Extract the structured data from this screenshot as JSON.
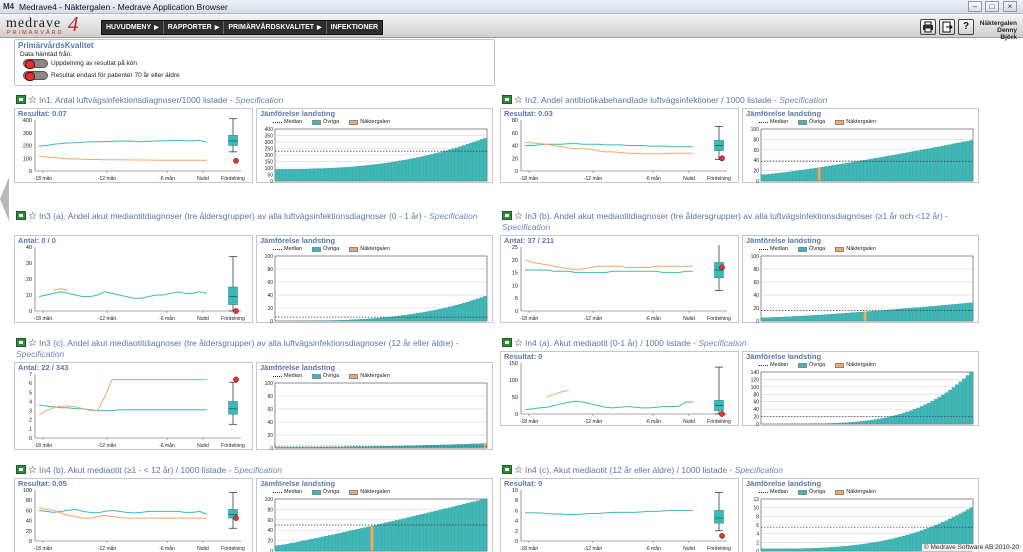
{
  "window": {
    "title": "Medrave4 - Näktergalen - Medrave Application Browser",
    "icon": "M4",
    "controls": [
      "–",
      "□",
      "×"
    ]
  },
  "logo": {
    "main": "medrave",
    "number": "4",
    "sub": "PRIMÄRVÅRD"
  },
  "menu": [
    {
      "label": "HUVUDMENY",
      "arrow": "▶"
    },
    {
      "label": "RAPPORTER",
      "arrow": "▶"
    },
    {
      "label": "PRIMÄRVÅRDSKVALITET",
      "arrow": "▶"
    },
    {
      "label": "INFEKTIONER",
      "arrow": ""
    }
  ],
  "toolbar": {
    "print_icon": "printer-icon",
    "exit_icon": "exit-icon",
    "help_label": "?"
  },
  "user": {
    "unit": "Näktergalen",
    "name": "Denny Björk"
  },
  "filter": {
    "title": "PrimärvårdsKvalitet",
    "subtitle": "Data hämtad från:",
    "options": [
      "Uppdelning av resultat på kön",
      "Resultat endast för patienter 70 år eller äldre"
    ]
  },
  "common": {
    "spec": "Specification",
    "comparison_title": "Jämförelse landsting",
    "legend": [
      "Median",
      "Övriga",
      "Näktergalen"
    ],
    "x_ticks": [
      "-18 mån",
      "-12 mån",
      "-6 mån",
      "Nutid"
    ],
    "box_label": "Fördelning"
  },
  "colors": {
    "teal": "#3cb9b9",
    "orange": "#f0a868",
    "median": "#333333",
    "marker": "#d9363e",
    "title_blue": "#5a76a8"
  },
  "copyright": "© Medrave Software AB 2010-20",
  "indicators": [
    {
      "title": "In1. Antal luftvägsinfektionsdiagnoser/1000 listade - ",
      "spec_line": 1,
      "result": "Resultat: 0.07",
      "trend": {
        "y_ticks": [
          "400",
          "300",
          "200",
          "100",
          "0"
        ],
        "ymax": 400,
        "teal": [
          195,
          200,
          210,
          215,
          220,
          222,
          225,
          228,
          230,
          230,
          232,
          235,
          235,
          233,
          230,
          232,
          235,
          236,
          238,
          240,
          238,
          236,
          240,
          225
        ],
        "orange": [
          115,
          110,
          105,
          100,
          95,
          95,
          92,
          90,
          90,
          88,
          88,
          88,
          87,
          86,
          86,
          86,
          85,
          85,
          84,
          84,
          84,
          84,
          84,
          84
        ],
        "box": {
          "min": 150,
          "q1": 200,
          "med": 235,
          "q3": 280,
          "max": 410,
          "marker": 80
        }
      },
      "comparison": {
        "y_ticks": [
          "400",
          "350",
          "300",
          "250",
          "200",
          "150",
          "100",
          "50",
          "0"
        ],
        "ymax": 400,
        "median": 230,
        "curve": [
          90,
          330,
          2.5
        ],
        "highlight": -1
      }
    },
    {
      "title": "In2. Andel antibiotikabehandlade luftvägsinfektioner / 1000 listade - ",
      "spec_line": 1,
      "result": "Resultat: 0.03",
      "trend": {
        "y_ticks": [
          "80",
          "60",
          "40",
          "20",
          "0"
        ],
        "ymax": 80,
        "teal": [
          40,
          40,
          41,
          42,
          42,
          42,
          43,
          43,
          42,
          42,
          42,
          41,
          41,
          41,
          40,
          40,
          40,
          39,
          39,
          39,
          38,
          38,
          38,
          38
        ],
        "orange": [
          45,
          44,
          43,
          42,
          40,
          38,
          36,
          35,
          35,
          34,
          32,
          30,
          30,
          29,
          28,
          28,
          27,
          27,
          27,
          27,
          28,
          28,
          28,
          28
        ],
        "box": {
          "min": 18,
          "q1": 32,
          "med": 40,
          "q3": 48,
          "max": 70,
          "marker": 20
        }
      },
      "comparison": {
        "y_ticks": [
          "100",
          "80",
          "60",
          "40",
          "20",
          "0"
        ],
        "ymax": 100,
        "median": 38,
        "curve": [
          12,
          78,
          1.2
        ],
        "highlight": 16
      }
    },
    {
      "title": "In3 (a). Andel akut mediaotitdiagnoser (tre åldersgrupper) av alla luftvägsinfektionsdiagnoser (0 - 1 år) - ",
      "spec_line": 2,
      "result": "Antal: 0 / 0",
      "trend": {
        "y_ticks": [
          "40",
          "30",
          "20",
          "10",
          "0"
        ],
        "ymax": 40,
        "teal": [
          9,
          10,
          11,
          12,
          11,
          10,
          9,
          9,
          10,
          12,
          11,
          10,
          9,
          8,
          8,
          9,
          10,
          10,
          11,
          12,
          11,
          11,
          12,
          11
        ],
        "orange": [
          null,
          null,
          13,
          14,
          13,
          null,
          null,
          null,
          null,
          null,
          null,
          null,
          null,
          null,
          null,
          null,
          null,
          null,
          null,
          null,
          null,
          null,
          null,
          null
        ],
        "box": {
          "min": 0,
          "q1": 4,
          "med": 9,
          "q3": 15,
          "max": 34,
          "marker": 0
        }
      },
      "comparison": {
        "y_ticks": [
          "100",
          "80",
          "60",
          "40",
          "20",
          "0"
        ],
        "ymax": 100,
        "median": 6,
        "curve": [
          0,
          38,
          3
        ],
        "highlight": -1
      }
    },
    {
      "title": "In3 (b). Andel akut mediaotitdiagnoser (tre åldersgrupper) av alla luftvägsinfektionsdiagnoser (≥1 år och <12 år) - ",
      "spec_line": 2,
      "result": "Antal: 37 / 211",
      "trend": {
        "y_ticks": [
          "25",
          "20",
          "15",
          "10",
          "5",
          "0"
        ],
        "ymax": 25,
        "teal": [
          16,
          16,
          16,
          16,
          15.5,
          15.5,
          15.5,
          15,
          15,
          15,
          15,
          15,
          15.5,
          15.5,
          15.5,
          15.5,
          15.5,
          15.5,
          15.5,
          15,
          15,
          15,
          15.5,
          15.5
        ],
        "orange": [
          20,
          19,
          18.5,
          18,
          17.5,
          17,
          16.5,
          16,
          16.5,
          17,
          17.5,
          17.5,
          17.5,
          17.5,
          17,
          17,
          17,
          17,
          17.5,
          17.5,
          17.5,
          17.5,
          17.5,
          17.5
        ],
        "box": {
          "min": 8,
          "q1": 13,
          "med": 16,
          "q3": 19,
          "max": 27,
          "marker": 17
        }
      },
      "comparison": {
        "y_ticks": [
          "100",
          "80",
          "60",
          "40",
          "20",
          "0"
        ],
        "ymax": 100,
        "median": 16,
        "curve": [
          5,
          28,
          1.3
        ],
        "highlight": 29
      }
    },
    {
      "title": "In3 (c). Andel akut mediaotitdiagnoser (tre åldersgrupper) av alla luftvägsinfektionsdiagnoser (12 år eller äldre) - ",
      "spec_line": 2,
      "result": "Antal: 22 / 343",
      "trend": {
        "y_ticks": [
          "7",
          "6",
          "5",
          "4",
          "3",
          "2",
          "1",
          "0"
        ],
        "ymax": 7,
        "teal": [
          3.6,
          3.5,
          3.4,
          3.3,
          3.3,
          3.2,
          3.2,
          3.1,
          3.0,
          3.0,
          3.0,
          3.1,
          3.1,
          3.1,
          3.1,
          3.1,
          3.1,
          3.1,
          3.1,
          3.1,
          3.1,
          3.1,
          3.1,
          3.1
        ],
        "orange": [
          2.5,
          3.0,
          3.3,
          3.5,
          3.5,
          3.4,
          3.2,
          3.0,
          3.0,
          4.5,
          6.4,
          6.4,
          6.4,
          6.4,
          6.4,
          6.4,
          6.4,
          6.4,
          6.4,
          6.4,
          6.4,
          6.4,
          6.4,
          6.4
        ],
        "box": {
          "min": 1.5,
          "q1": 2.6,
          "med": 3.2,
          "q3": 4.0,
          "max": 6.1,
          "marker": 6.4
        }
      },
      "comparison": {
        "y_ticks": [
          "100",
          "80",
          "60",
          "40",
          "20",
          "0"
        ],
        "ymax": 100,
        "median": 3,
        "curve": [
          1,
          7,
          2
        ],
        "highlight": 59
      }
    },
    {
      "title": "In4 (a). Akut mediaotit (0-1 år) / 1000 listade - ",
      "spec_line": 1,
      "result": "Resultat: 0",
      "trend": {
        "y_ticks": [
          "150",
          "100",
          "50",
          "0"
        ],
        "ymax": 150,
        "teal": [
          12,
          15,
          18,
          20,
          25,
          30,
          35,
          38,
          35,
          30,
          25,
          20,
          18,
          20,
          22,
          20,
          18,
          18,
          20,
          22,
          22,
          22,
          35,
          35
        ],
        "orange": [
          null,
          null,
          null,
          50,
          58,
          65,
          70,
          null,
          null,
          null,
          null,
          null,
          null,
          null,
          null,
          null,
          null,
          null,
          null,
          null,
          null,
          null,
          null,
          null
        ],
        "box": {
          "min": 0,
          "q1": 10,
          "med": 25,
          "q3": 40,
          "max": 138,
          "marker": 0
        }
      },
      "comparison": {
        "y_ticks": [
          "140",
          "120",
          "100",
          "80",
          "60",
          "40",
          "20",
          "0"
        ],
        "ymax": 140,
        "median": 20,
        "curve": [
          0,
          140,
          4
        ],
        "highlight": -1
      }
    },
    {
      "title": "In4 (b). Akut mediaotit (≥1 - < 12 år) / 1000 listade - ",
      "spec_line": 1,
      "result": "Resultat: 0.05",
      "trend": {
        "y_ticks": [
          "100",
          "80",
          "60",
          "40",
          "20",
          "0"
        ],
        "ymax": 100,
        "teal": [
          60,
          58,
          56,
          58,
          60,
          62,
          58,
          56,
          55,
          58,
          60,
          58,
          56,
          55,
          56,
          58,
          58,
          58,
          58,
          58,
          56,
          56,
          58,
          52
        ],
        "orange": [
          65,
          62,
          60,
          55,
          50,
          48,
          45,
          45,
          48,
          50,
          48,
          46,
          45,
          45,
          45,
          45,
          45,
          45,
          45,
          45,
          45,
          45,
          45,
          45
        ],
        "box": {
          "min": 25,
          "q1": 45,
          "med": 52,
          "q3": 62,
          "max": 95,
          "marker": 45
        }
      },
      "comparison": {
        "y_ticks": [
          "100",
          "80",
          "60",
          "40",
          "20",
          "0"
        ],
        "ymax": 100,
        "median": 50,
        "curve": [
          10,
          100,
          1.1
        ],
        "highlight": 27
      }
    },
    {
      "title": "In4 (c). Akut mediaotit (12 år eller äldre) / 1000 listade - ",
      "spec_line": 1,
      "result": "Resultat: 0",
      "trend": {
        "y_ticks": [
          "10",
          "8",
          "6",
          "4",
          "2",
          "0"
        ],
        "ymax": 10,
        "teal": [
          5.5,
          5.5,
          5.5,
          5.4,
          5.3,
          5.3,
          5.2,
          5.2,
          5.3,
          5.4,
          5.4,
          5.5,
          5.6,
          5.6,
          5.6,
          5.6,
          5.7,
          5.8,
          5.8,
          5.9,
          6.0,
          6.0,
          6.0,
          6.0
        ],
        "orange": [],
        "box": {
          "min": 2,
          "q1": 3.5,
          "med": 4.5,
          "q3": 6,
          "max": 9.5,
          "marker": 1
        }
      },
      "comparison": {
        "y_ticks": [
          "12",
          "10",
          "8",
          "6",
          "4",
          "2",
          "0"
        ],
        "ymax": 12,
        "median": 5.5,
        "curve": [
          0.5,
          10,
          3
        ],
        "highlight": -1
      }
    }
  ]
}
